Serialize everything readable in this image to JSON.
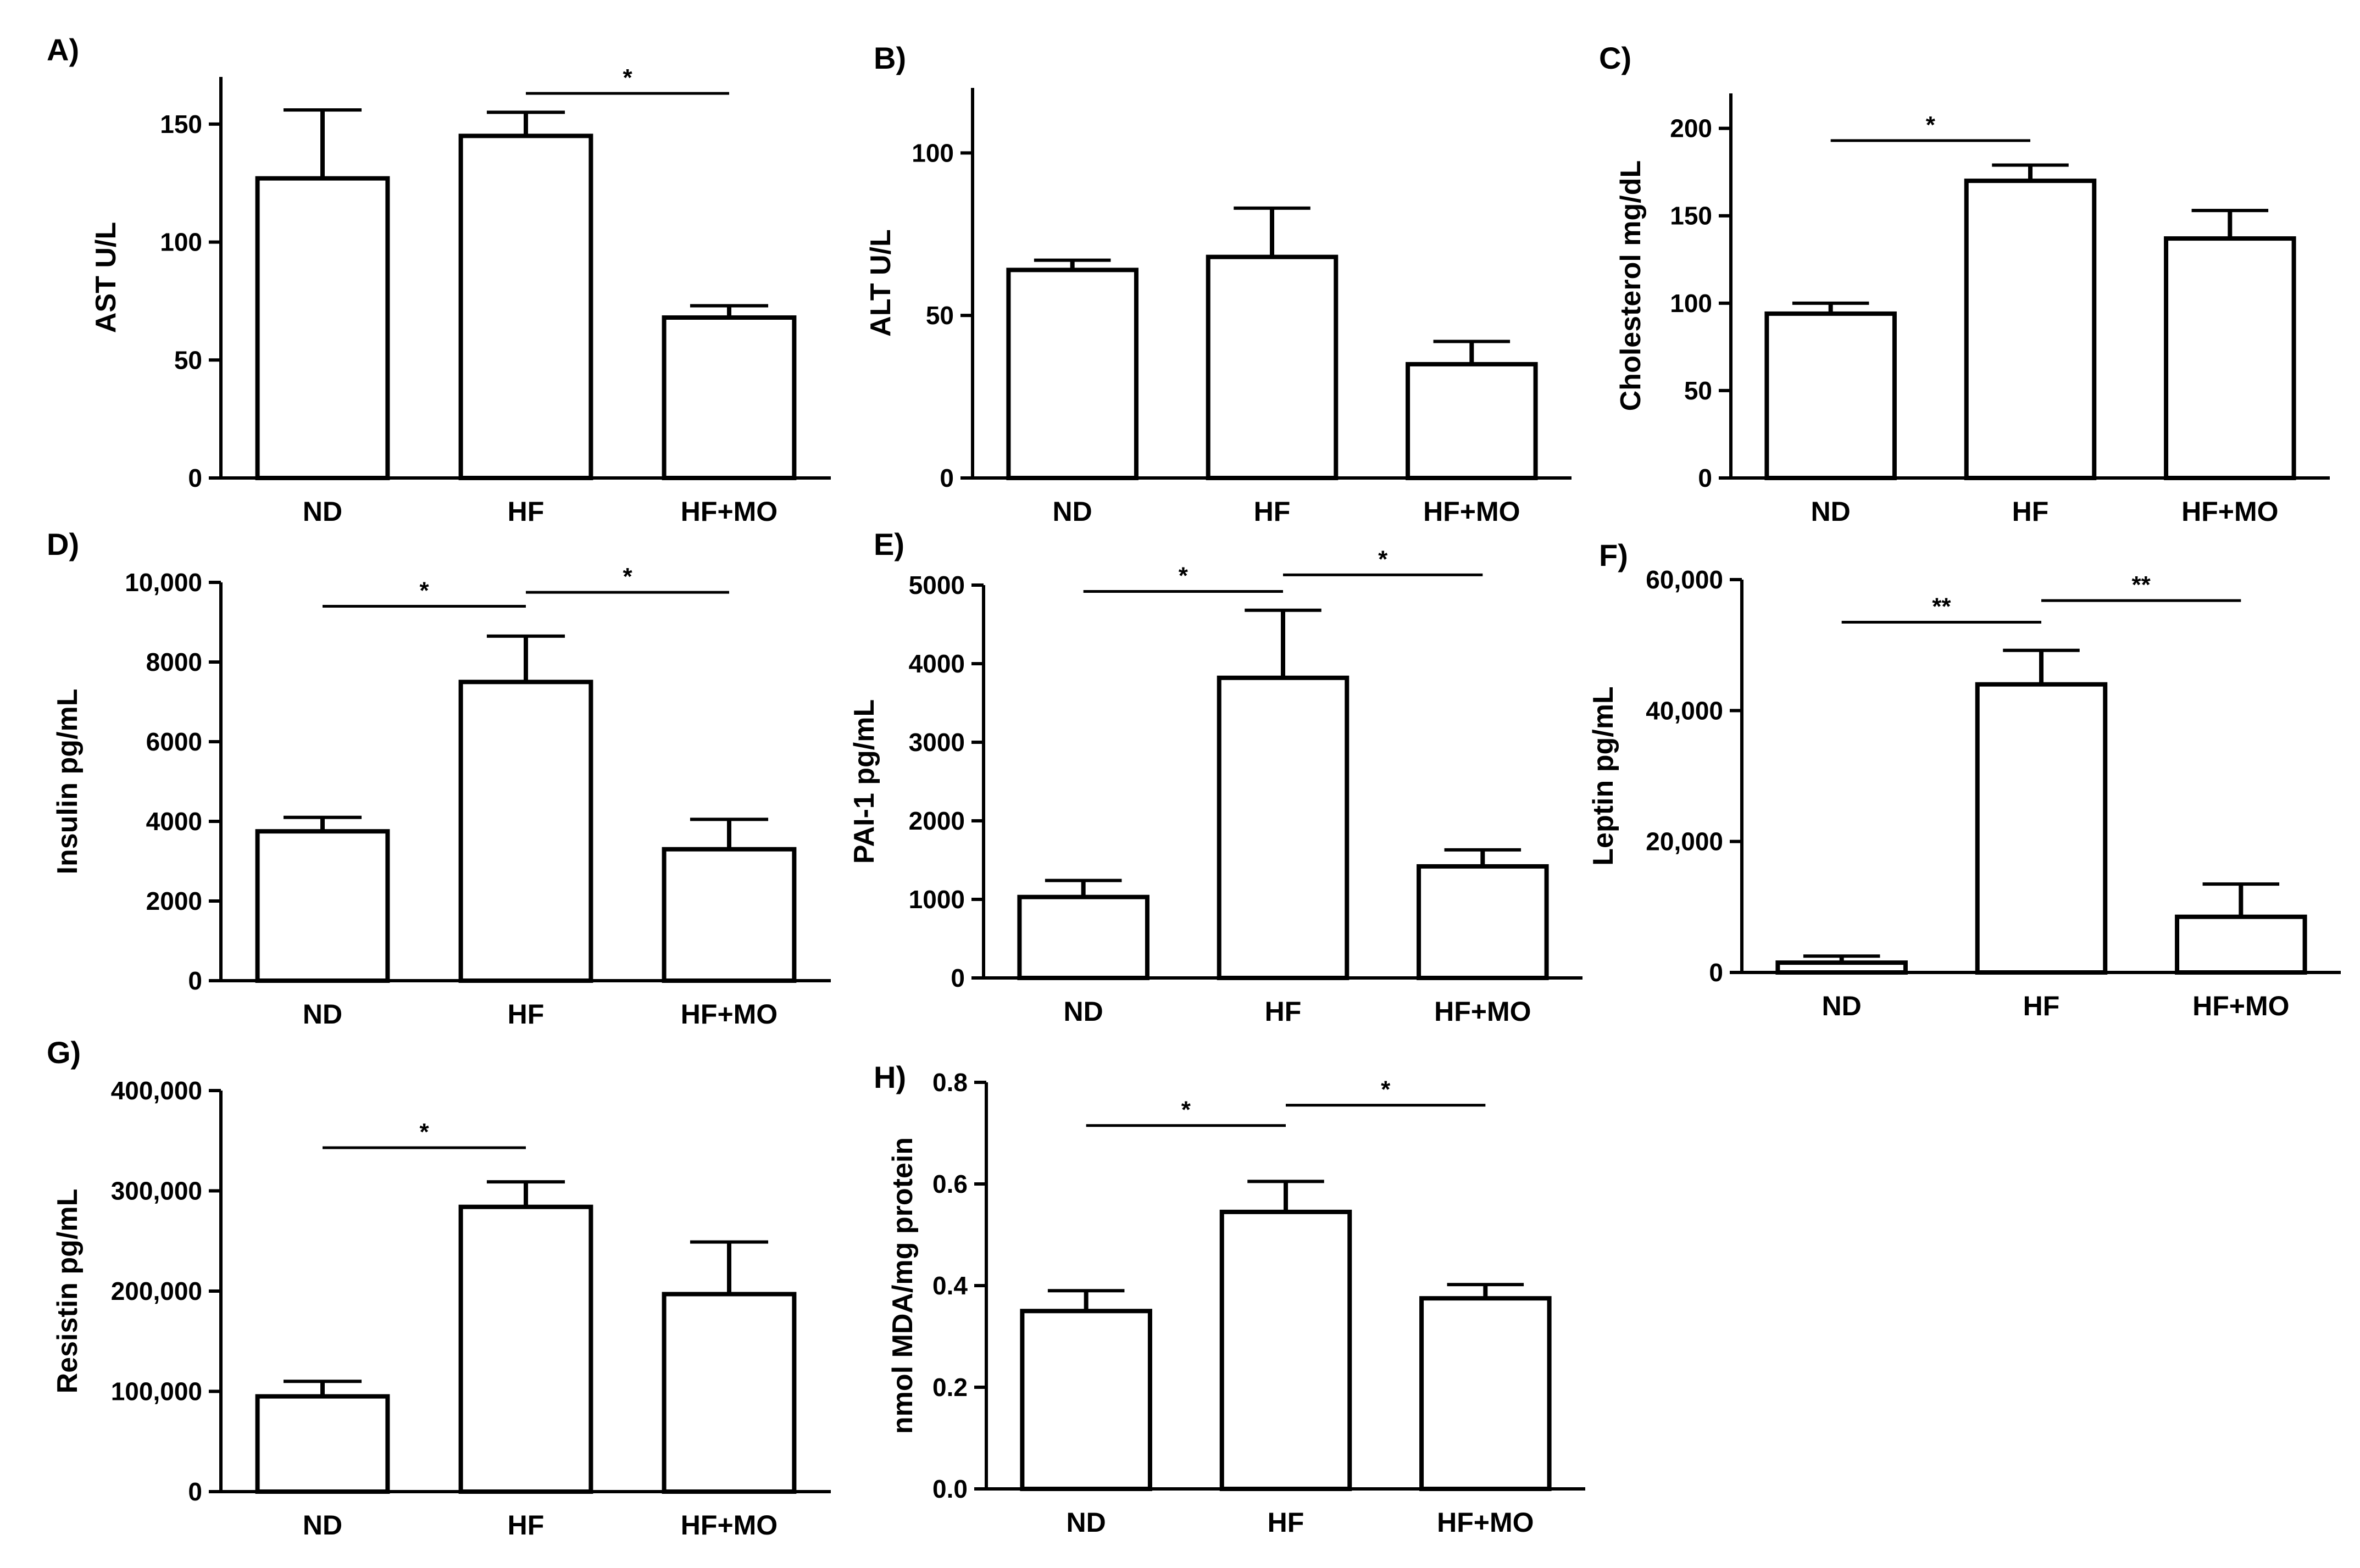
{
  "figure": {
    "panel_count": 8
  },
  "chart_data": [
    {
      "type": "bar",
      "panel": "A)",
      "title": "",
      "xlabel": "",
      "ylabel": "AST U/L",
      "categories": [
        "ND",
        "HF",
        "HF+MO"
      ],
      "values": [
        127,
        145,
        68
      ],
      "errors": [
        29,
        10,
        5
      ],
      "ylim": [
        0,
        170
      ],
      "yticks": [
        0,
        50,
        100,
        150
      ],
      "ytick_labels": [
        "0",
        "50",
        "100",
        "150"
      ],
      "significance": [
        {
          "from": "HF",
          "to": "HF+MO",
          "y": 163,
          "label": "*"
        }
      ]
    },
    {
      "type": "bar",
      "panel": "B)",
      "title": "",
      "xlabel": "",
      "ylabel": "ALT U/L",
      "categories": [
        "ND",
        "HF",
        "HF+MO"
      ],
      "values": [
        64,
        68,
        35
      ],
      "errors": [
        3,
        15,
        7
      ],
      "ylim": [
        0,
        120
      ],
      "yticks": [
        0,
        50,
        100
      ],
      "ytick_labels": [
        "0",
        "50",
        "100"
      ],
      "significance": []
    },
    {
      "type": "bar",
      "panel": "C)",
      "title": "",
      "xlabel": "",
      "ylabel": "Cholesterol mg/dL",
      "categories": [
        "ND",
        "HF",
        "HF+MO"
      ],
      "values": [
        94,
        170,
        137
      ],
      "errors": [
        6,
        9,
        16
      ],
      "ylim": [
        0,
        220
      ],
      "yticks": [
        0,
        50,
        100,
        150,
        200
      ],
      "ytick_labels": [
        "0",
        "50",
        "100",
        "150",
        "200"
      ],
      "significance": [
        {
          "from": "ND",
          "to": "HF",
          "y": 193,
          "label": "*"
        }
      ]
    },
    {
      "type": "bar",
      "panel": "D)",
      "title": "",
      "xlabel": "",
      "ylabel": "Insulin pg/mL",
      "categories": [
        "ND",
        "HF",
        "HF+MO"
      ],
      "values": [
        3750,
        7500,
        3300
      ],
      "errors": [
        350,
        1150,
        750
      ],
      "ylim": [
        0,
        10000
      ],
      "yticks": [
        0,
        2000,
        4000,
        6000,
        8000,
        10000
      ],
      "ytick_labels": [
        "0",
        "2000",
        "4000",
        "6000",
        "8000",
        "10,000"
      ],
      "significance": [
        {
          "from": "ND",
          "to": "HF",
          "y": 9400,
          "label": "*"
        },
        {
          "from": "HF",
          "to": "HF+MO",
          "y": 9750,
          "label": "*"
        }
      ]
    },
    {
      "type": "bar",
      "panel": "E)",
      "title": "",
      "xlabel": "",
      "ylabel": "PAI-1 pg/mL",
      "categories": [
        "ND",
        "HF",
        "HF+MO"
      ],
      "values": [
        1030,
        3820,
        1420
      ],
      "errors": [
        210,
        860,
        210
      ],
      "ylim": [
        0,
        5000
      ],
      "yticks": [
        0,
        1000,
        2000,
        3000,
        4000,
        5000
      ],
      "ytick_labels": [
        "0",
        "1000",
        "2000",
        "3000",
        "4000",
        "5000"
      ],
      "significance": [
        {
          "from": "ND",
          "to": "HF",
          "y": 4920,
          "label": "*"
        },
        {
          "from": "HF",
          "to": "HF+MO",
          "y": 5130,
          "label": "*"
        }
      ]
    },
    {
      "type": "bar",
      "panel": "F)",
      "title": "",
      "xlabel": "",
      "ylabel": "Leptin pg/mL",
      "categories": [
        "ND",
        "HF",
        "HF+MO"
      ],
      "values": [
        1500,
        44000,
        8500
      ],
      "errors": [
        1000,
        5200,
        5000
      ],
      "ylim": [
        0,
        60000
      ],
      "yticks": [
        0,
        20000,
        40000,
        60000
      ],
      "ytick_labels": [
        "0",
        "20,000",
        "40,000",
        "60,000"
      ],
      "significance": [
        {
          "from": "ND",
          "to": "HF",
          "y": 53500,
          "label": "**"
        },
        {
          "from": "HF",
          "to": "HF+MO",
          "y": 56800,
          "label": "**"
        }
      ]
    },
    {
      "type": "bar",
      "panel": "G)",
      "title": "",
      "xlabel": "",
      "ylabel": "Resistin pg/mL",
      "categories": [
        "ND",
        "HF",
        "HF+MO"
      ],
      "values": [
        95000,
        284000,
        197000
      ],
      "errors": [
        15000,
        25000,
        52000
      ],
      "ylim": [
        0,
        400000
      ],
      "yticks": [
        0,
        100000,
        200000,
        300000,
        400000
      ],
      "ytick_labels": [
        "0",
        "100,000",
        "200,000",
        "300,000",
        "400,000"
      ],
      "significance": [
        {
          "from": "ND",
          "to": "HF",
          "y": 343000,
          "label": "*"
        }
      ]
    },
    {
      "type": "bar",
      "panel": "H)",
      "title": "",
      "xlabel": "",
      "ylabel": "nmol MDA/mg protein",
      "categories": [
        "ND",
        "HF",
        "HF+MO"
      ],
      "values": [
        0.35,
        0.545,
        0.375
      ],
      "errors": [
        0.04,
        0.06,
        0.027
      ],
      "ylim": [
        0,
        0.8
      ],
      "yticks": [
        0,
        0.2,
        0.4,
        0.6,
        0.8
      ],
      "ytick_labels": [
        "0.0",
        "0.2",
        "0.4",
        "0.6",
        "0.8"
      ],
      "significance": [
        {
          "from": "ND",
          "to": "HF",
          "y": 0.715,
          "label": "*"
        },
        {
          "from": "HF",
          "to": "HF+MO",
          "y": 0.755,
          "label": "*"
        }
      ]
    }
  ]
}
